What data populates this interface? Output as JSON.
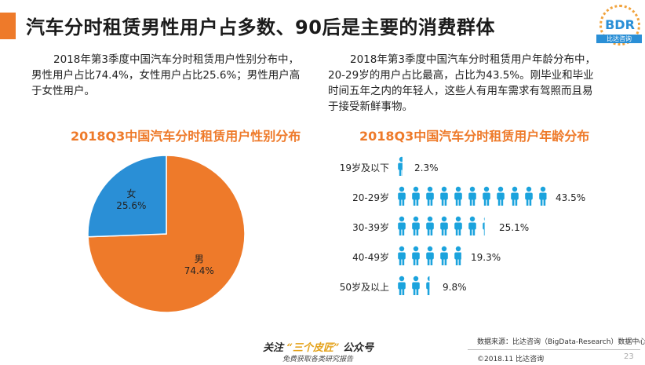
{
  "header": {
    "title": "汽车分时租赁男性用户占多数、90后是主要的消费群体"
  },
  "logo": {
    "text": "BDR",
    "sub": "比达咨询"
  },
  "left_text": "2018年第3季度中国汽车分时租赁用户性别分布中，男性用户占比74.4%，女性用户占比25.6%；男性用户高于女性用户。",
  "right_text": "2018年第3季度中国汽车分时租赁用户年龄分布中，20-29岁的用户占比最高，占比为43.5%。刚毕业和毕业时间五年之内的年轻人，这些人有用车需求有驾照而且易于接受新鲜事物。",
  "colors": {
    "accent": "#ee7a2a",
    "blue": "#2a8fd6",
    "person": "#1ba3dd"
  },
  "chart_data": [
    {
      "type": "pie",
      "title": "2018Q3中国汽车分时租赁用户性别分布",
      "slices": [
        {
          "label": "男",
          "value": 74.4,
          "value_label": "74.4%",
          "color": "#ee7a2a"
        },
        {
          "label": "女",
          "value": 25.6,
          "value_label": "25.6%",
          "color": "#2a8fd6"
        }
      ]
    },
    {
      "type": "bar",
      "title": "2018Q3中国汽车分时租赁用户年龄分布",
      "categories": [
        "19岁及以下",
        "20-29岁",
        "30-39岁",
        "40-49岁",
        "50岁及以上"
      ],
      "values": [
        2.3,
        43.5,
        25.1,
        19.3,
        9.8
      ],
      "value_labels": [
        "2.3%",
        "43.5%",
        "25.1%",
        "19.3%",
        "9.8%"
      ],
      "unit": "%"
    }
  ],
  "footer": {
    "source": "数据来源：比达咨询（BigData-Research）数据中心",
    "copyright": "©2018.11 比达咨询",
    "page": "23"
  },
  "watermark": {
    "pre": "关注",
    "highlight": "“三个皮匠”",
    "post": "公众号",
    "sub": "免费获取各类研究报告"
  }
}
